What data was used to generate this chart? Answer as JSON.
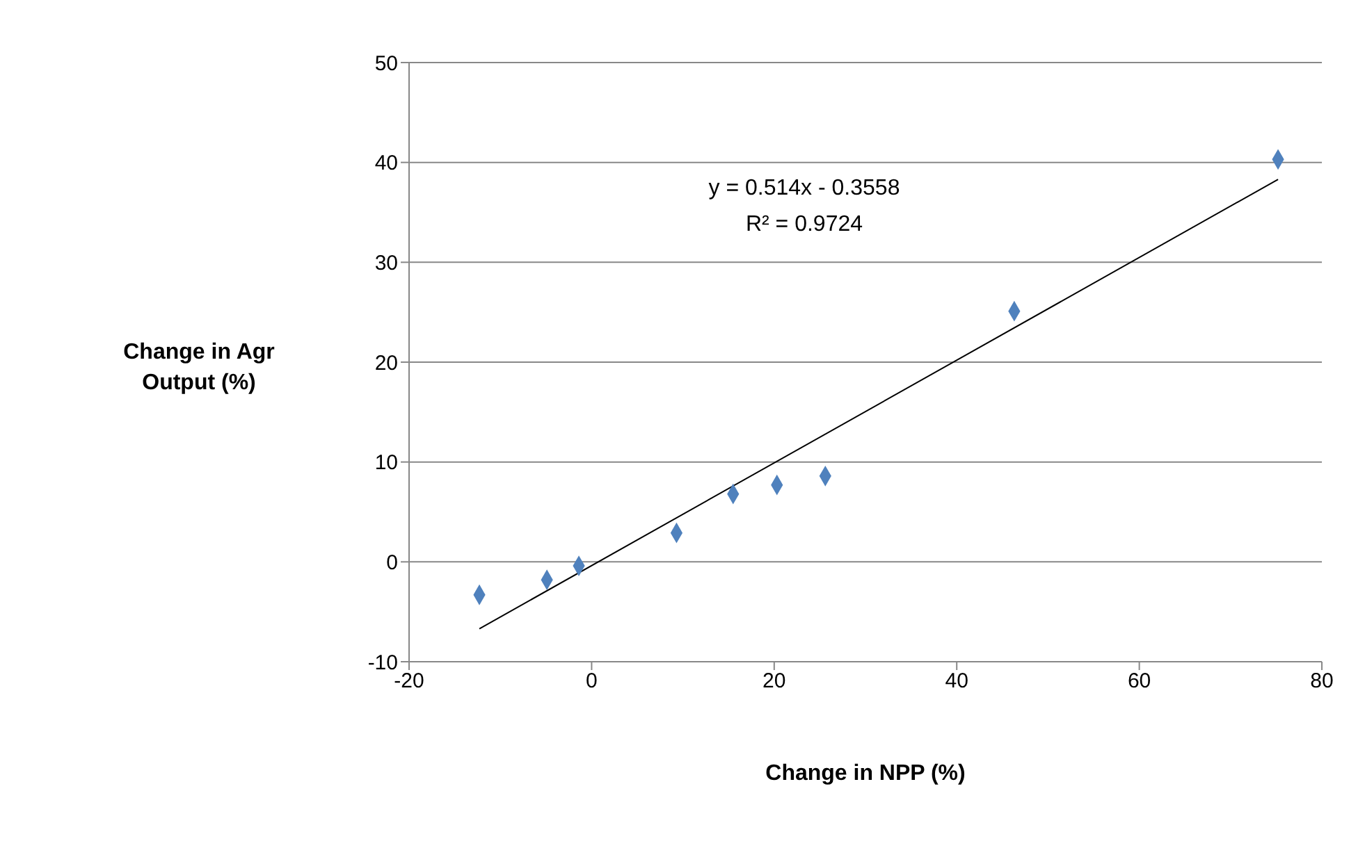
{
  "chart_data": {
    "type": "scatter",
    "xlabel": "Change in NPP (%)",
    "ylabel": "Change in Agr Output (%)",
    "annotations": [
      "y = 0.514x - 0.3558",
      "R² = 0.9724"
    ],
    "xlim": [
      -20,
      80
    ],
    "xticks": [
      -20,
      0,
      20,
      40,
      60,
      80
    ],
    "ylim": [
      -10,
      50
    ],
    "yticks": [
      -10,
      0,
      10,
      20,
      30,
      40,
      50
    ],
    "grid": "y",
    "series": [
      {
        "color": "#4f81bd",
        "marker": "diamond",
        "x": [
          -12.3,
          -4.9,
          -1.4,
          9.3,
          15.5,
          20.3,
          25.6,
          46.3,
          75.2
        ],
        "values": [
          -3.3,
          -1.8,
          -0.4,
          2.9,
          6.8,
          7.7,
          8.6,
          25.1,
          40.3
        ]
      },
      {
        "type": "line",
        "color": "#000000",
        "marker": "none",
        "line_style": "solid",
        "x": [
          -12.3,
          75.2
        ],
        "values": [
          -6.7,
          38.3
        ]
      }
    ]
  }
}
